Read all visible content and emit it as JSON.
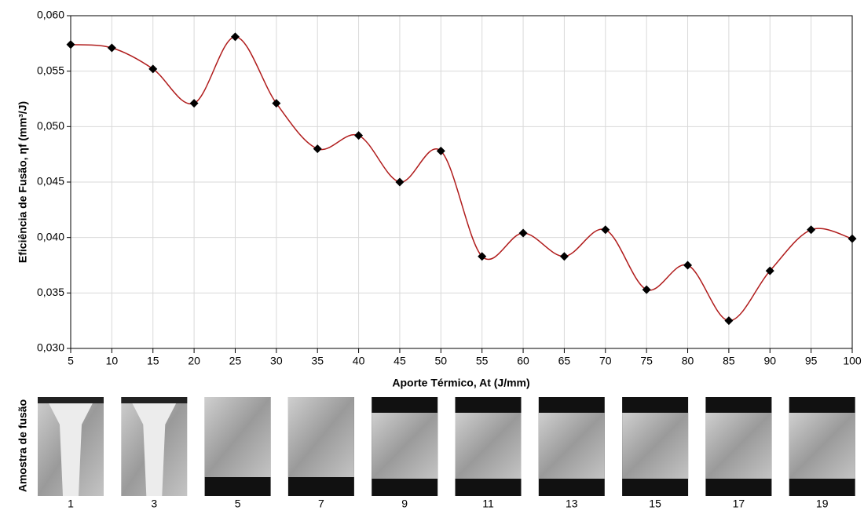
{
  "chart_data": {
    "type": "line",
    "y_label": "Eficiência de Fusão, ηf (mm³/J)",
    "x_label": "Aporte Térmico, At (J/mm)",
    "x": [
      5,
      10,
      15,
      20,
      25,
      30,
      35,
      40,
      45,
      50,
      55,
      60,
      65,
      70,
      75,
      80,
      85,
      90,
      95,
      100
    ],
    "series": [
      {
        "color": "#b01c1c",
        "values": [
          0.0574,
          0.0571,
          0.0552,
          0.0521,
          0.0581,
          0.0521,
          0.048,
          0.0492,
          0.045,
          0.0478,
          0.0383,
          0.0404,
          0.0383,
          0.0407,
          0.0353,
          0.0375,
          0.0325,
          0.037,
          0.0407,
          0.0399
        ]
      }
    ],
    "xlim": [
      5,
      100
    ],
    "xticks": [
      5,
      10,
      15,
      20,
      25,
      30,
      35,
      40,
      45,
      50,
      55,
      60,
      65,
      70,
      75,
      80,
      85,
      90,
      95,
      100
    ],
    "ylim": [
      0.03,
      0.06
    ],
    "yticks": [
      {
        "value": 0.03,
        "label": "0,030"
      },
      {
        "value": 0.035,
        "label": "0,035"
      },
      {
        "value": 0.04,
        "label": "0,040"
      },
      {
        "value": 0.045,
        "label": "0,045"
      },
      {
        "value": 0.05,
        "label": "0,050"
      },
      {
        "value": 0.055,
        "label": "0,055"
      },
      {
        "value": 0.06,
        "label": "0,060"
      }
    ],
    "grid": true
  },
  "samples": {
    "label": "Amostra de fusão",
    "items": [
      "1",
      "3",
      "5",
      "7",
      "9",
      "11",
      "13",
      "15",
      "17",
      "19"
    ]
  }
}
